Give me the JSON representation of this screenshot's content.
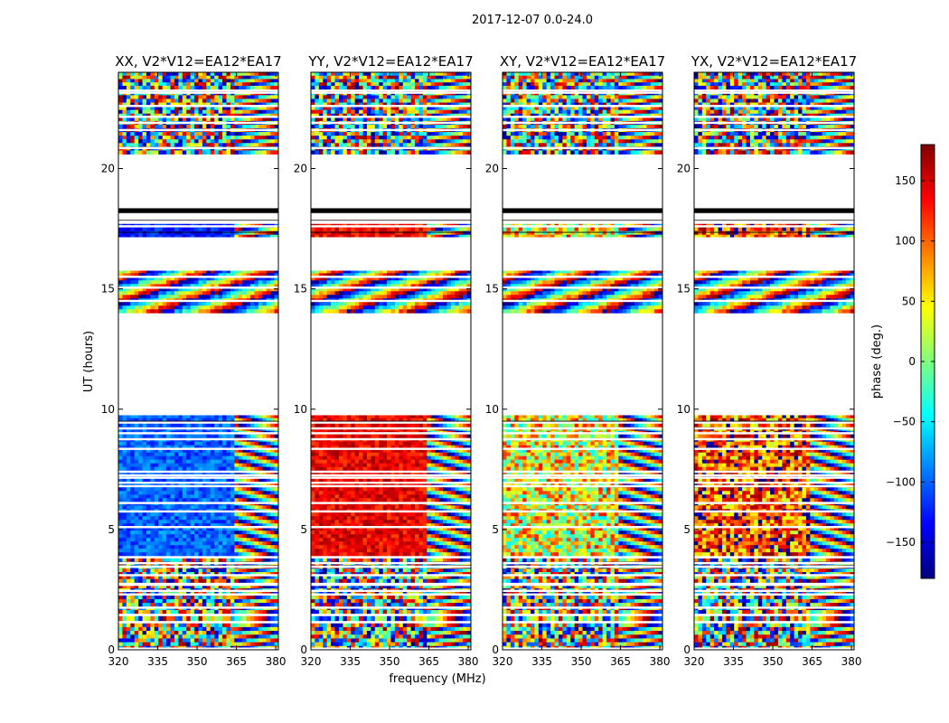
{
  "figure": {
    "suptitle": "2017-12-07 0.0-24.0",
    "xlabel": "frequency (MHz)",
    "ylabel": "UT (hours)"
  },
  "chart_data": {
    "type": "heatmap",
    "suptitle": "2017-12-07 0.0-24.0",
    "xlabel": "frequency (MHz)",
    "ylabel": "UT (hours)",
    "xlim": [
      320,
      381
    ],
    "ylim": [
      0,
      24
    ],
    "xticks": [
      320,
      335,
      350,
      365,
      380
    ],
    "yticks": [
      0,
      5,
      10,
      15,
      20
    ],
    "colorbar": {
      "label": "phase (deg.)",
      "range": [
        -180,
        180
      ],
      "ticks": [
        150,
        100,
        50,
        0,
        -50,
        -100,
        -150
      ],
      "tick_labels": [
        "150",
        "100",
        "50",
        "0",
        "−50",
        "−100",
        "−150"
      ],
      "colormap": [
        "#00007f",
        "#0000ff",
        "#007fff",
        "#00ffff",
        "#7fff7f",
        "#ffff00",
        "#ff7f00",
        "#ff0000",
        "#7f0000"
      ]
    },
    "panels": [
      {
        "title": "XX, V2*V12=EA12*EA17",
        "phase_low_freq_day": -100,
        "phase_low_freq_night": -130,
        "noise": 30
      },
      {
        "title": "YY, V2*V12=EA12*EA17",
        "phase_low_freq_day": 140,
        "phase_low_freq_night": 135,
        "noise": 30
      },
      {
        "title": "XY, V2*V12=EA12*EA17",
        "phase_low_freq_day": 40,
        "phase_low_freq_night": 50,
        "noise": 90
      },
      {
        "title": "YX, V2*V12=EA12*EA17",
        "phase_low_freq_day": 110,
        "phase_low_freq_night": 120,
        "noise": 90
      }
    ],
    "rfi_boundary_mhz": 363,
    "data_segments_ut": [
      [
        0.0,
        1.1
      ],
      [
        1.2,
        1.4
      ],
      [
        1.5,
        2.7
      ],
      [
        2.8,
        3.8
      ],
      [
        3.9,
        6.9
      ],
      [
        7.0,
        9.4
      ],
      [
        9.5,
        9.75
      ],
      [
        14.0,
        15.8
      ],
      [
        17.1,
        17.7
      ],
      [
        20.6,
        23.2
      ],
      [
        23.3,
        24.0
      ]
    ],
    "empty_gaps_ut": [
      [
        9.8,
        14.0
      ],
      [
        18.4,
        20.6
      ]
    ],
    "flag_lines_ut": [
      0.05,
      1.15,
      1.45,
      1.75,
      2.3,
      2.45,
      2.7,
      3.1,
      3.45,
      3.6,
      3.85,
      5.1,
      5.75,
      6.1,
      6.8,
      7.15,
      7.25,
      7.4,
      8.35,
      8.75,
      9.0,
      9.2,
      9.45,
      9.8,
      14.5,
      15.05,
      15.5,
      15.8,
      17.1,
      17.6,
      17.8,
      18.2,
      20.85,
      21.6,
      21.9,
      22.15,
      22.6,
      23.15
    ],
    "thick_flag_ut": [
      18.15,
      18.35
    ]
  }
}
